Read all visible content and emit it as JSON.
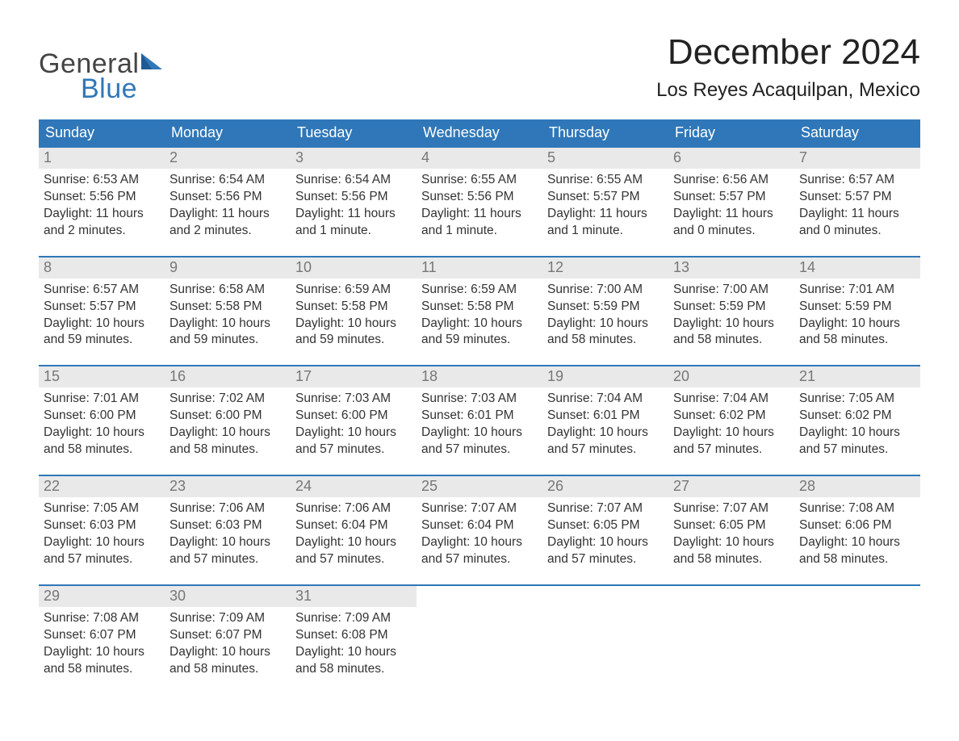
{
  "logo": {
    "general": "General",
    "blue": "Blue",
    "accent_color": "#2f77b8"
  },
  "title": "December 2024",
  "location": "Los Reyes Acaquilpan, Mexico",
  "colors": {
    "header_bg": "#2f77b8",
    "header_text": "#ffffff",
    "daynum_bg": "#e9e9e9",
    "daynum_text": "#777777",
    "week_border": "#2f77b8",
    "body_text": "#333333",
    "page_bg": "#ffffff"
  },
  "day_labels": [
    "Sunday",
    "Monday",
    "Tuesday",
    "Wednesday",
    "Thursday",
    "Friday",
    "Saturday"
  ],
  "fonts": {
    "title_pt": 44,
    "location_pt": 24,
    "dow_pt": 18,
    "body_pt": 15.5
  },
  "weeks": [
    [
      {
        "n": "1",
        "sunrise": "Sunrise: 6:53 AM",
        "sunset": "Sunset: 5:56 PM",
        "daylight": "Daylight: 11 hours and 2 minutes."
      },
      {
        "n": "2",
        "sunrise": "Sunrise: 6:54 AM",
        "sunset": "Sunset: 5:56 PM",
        "daylight": "Daylight: 11 hours and 2 minutes."
      },
      {
        "n": "3",
        "sunrise": "Sunrise: 6:54 AM",
        "sunset": "Sunset: 5:56 PM",
        "daylight": "Daylight: 11 hours and 1 minute."
      },
      {
        "n": "4",
        "sunrise": "Sunrise: 6:55 AM",
        "sunset": "Sunset: 5:56 PM",
        "daylight": "Daylight: 11 hours and 1 minute."
      },
      {
        "n": "5",
        "sunrise": "Sunrise: 6:55 AM",
        "sunset": "Sunset: 5:57 PM",
        "daylight": "Daylight: 11 hours and 1 minute."
      },
      {
        "n": "6",
        "sunrise": "Sunrise: 6:56 AM",
        "sunset": "Sunset: 5:57 PM",
        "daylight": "Daylight: 11 hours and 0 minutes."
      },
      {
        "n": "7",
        "sunrise": "Sunrise: 6:57 AM",
        "sunset": "Sunset: 5:57 PM",
        "daylight": "Daylight: 11 hours and 0 minutes."
      }
    ],
    [
      {
        "n": "8",
        "sunrise": "Sunrise: 6:57 AM",
        "sunset": "Sunset: 5:57 PM",
        "daylight": "Daylight: 10 hours and 59 minutes."
      },
      {
        "n": "9",
        "sunrise": "Sunrise: 6:58 AM",
        "sunset": "Sunset: 5:58 PM",
        "daylight": "Daylight: 10 hours and 59 minutes."
      },
      {
        "n": "10",
        "sunrise": "Sunrise: 6:59 AM",
        "sunset": "Sunset: 5:58 PM",
        "daylight": "Daylight: 10 hours and 59 minutes."
      },
      {
        "n": "11",
        "sunrise": "Sunrise: 6:59 AM",
        "sunset": "Sunset: 5:58 PM",
        "daylight": "Daylight: 10 hours and 59 minutes."
      },
      {
        "n": "12",
        "sunrise": "Sunrise: 7:00 AM",
        "sunset": "Sunset: 5:59 PM",
        "daylight": "Daylight: 10 hours and 58 minutes."
      },
      {
        "n": "13",
        "sunrise": "Sunrise: 7:00 AM",
        "sunset": "Sunset: 5:59 PM",
        "daylight": "Daylight: 10 hours and 58 minutes."
      },
      {
        "n": "14",
        "sunrise": "Sunrise: 7:01 AM",
        "sunset": "Sunset: 5:59 PM",
        "daylight": "Daylight: 10 hours and 58 minutes."
      }
    ],
    [
      {
        "n": "15",
        "sunrise": "Sunrise: 7:01 AM",
        "sunset": "Sunset: 6:00 PM",
        "daylight": "Daylight: 10 hours and 58 minutes."
      },
      {
        "n": "16",
        "sunrise": "Sunrise: 7:02 AM",
        "sunset": "Sunset: 6:00 PM",
        "daylight": "Daylight: 10 hours and 58 minutes."
      },
      {
        "n": "17",
        "sunrise": "Sunrise: 7:03 AM",
        "sunset": "Sunset: 6:00 PM",
        "daylight": "Daylight: 10 hours and 57 minutes."
      },
      {
        "n": "18",
        "sunrise": "Sunrise: 7:03 AM",
        "sunset": "Sunset: 6:01 PM",
        "daylight": "Daylight: 10 hours and 57 minutes."
      },
      {
        "n": "19",
        "sunrise": "Sunrise: 7:04 AM",
        "sunset": "Sunset: 6:01 PM",
        "daylight": "Daylight: 10 hours and 57 minutes."
      },
      {
        "n": "20",
        "sunrise": "Sunrise: 7:04 AM",
        "sunset": "Sunset: 6:02 PM",
        "daylight": "Daylight: 10 hours and 57 minutes."
      },
      {
        "n": "21",
        "sunrise": "Sunrise: 7:05 AM",
        "sunset": "Sunset: 6:02 PM",
        "daylight": "Daylight: 10 hours and 57 minutes."
      }
    ],
    [
      {
        "n": "22",
        "sunrise": "Sunrise: 7:05 AM",
        "sunset": "Sunset: 6:03 PM",
        "daylight": "Daylight: 10 hours and 57 minutes."
      },
      {
        "n": "23",
        "sunrise": "Sunrise: 7:06 AM",
        "sunset": "Sunset: 6:03 PM",
        "daylight": "Daylight: 10 hours and 57 minutes."
      },
      {
        "n": "24",
        "sunrise": "Sunrise: 7:06 AM",
        "sunset": "Sunset: 6:04 PM",
        "daylight": "Daylight: 10 hours and 57 minutes."
      },
      {
        "n": "25",
        "sunrise": "Sunrise: 7:07 AM",
        "sunset": "Sunset: 6:04 PM",
        "daylight": "Daylight: 10 hours and 57 minutes."
      },
      {
        "n": "26",
        "sunrise": "Sunrise: 7:07 AM",
        "sunset": "Sunset: 6:05 PM",
        "daylight": "Daylight: 10 hours and 57 minutes."
      },
      {
        "n": "27",
        "sunrise": "Sunrise: 7:07 AM",
        "sunset": "Sunset: 6:05 PM",
        "daylight": "Daylight: 10 hours and 58 minutes."
      },
      {
        "n": "28",
        "sunrise": "Sunrise: 7:08 AM",
        "sunset": "Sunset: 6:06 PM",
        "daylight": "Daylight: 10 hours and 58 minutes."
      }
    ],
    [
      {
        "n": "29",
        "sunrise": "Sunrise: 7:08 AM",
        "sunset": "Sunset: 6:07 PM",
        "daylight": "Daylight: 10 hours and 58 minutes."
      },
      {
        "n": "30",
        "sunrise": "Sunrise: 7:09 AM",
        "sunset": "Sunset: 6:07 PM",
        "daylight": "Daylight: 10 hours and 58 minutes."
      },
      {
        "n": "31",
        "sunrise": "Sunrise: 7:09 AM",
        "sunset": "Sunset: 6:08 PM",
        "daylight": "Daylight: 10 hours and 58 minutes."
      },
      null,
      null,
      null,
      null
    ]
  ]
}
